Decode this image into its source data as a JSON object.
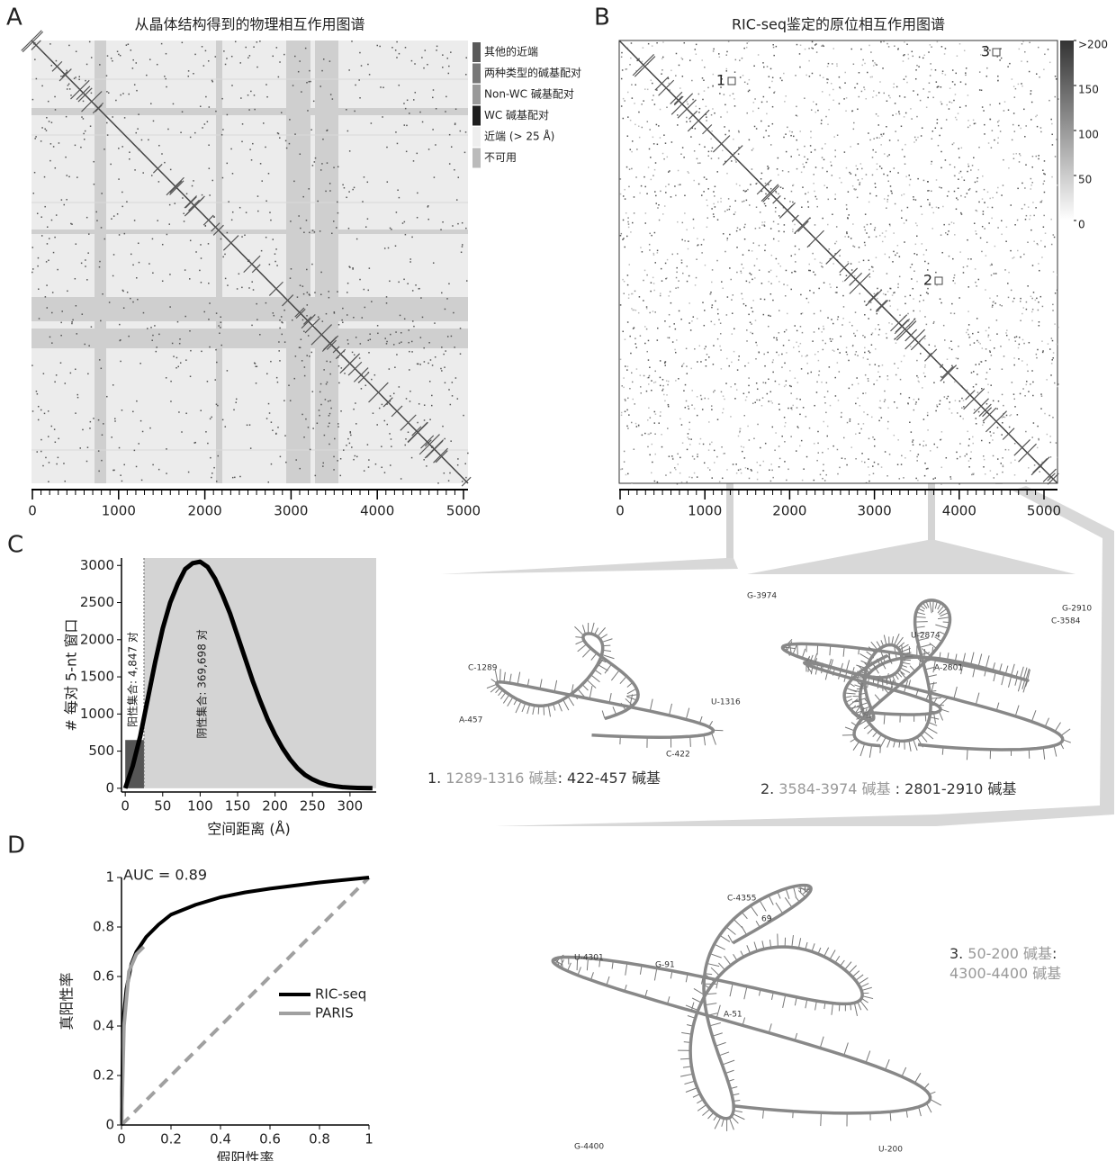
{
  "panels": {
    "A": {
      "label": "A",
      "title": "从晶体结构得到的物理相互作用图谱",
      "legend": [
        {
          "label": "其他的近端",
          "color": "#5a5a5a"
        },
        {
          "label": "两种类型的碱基配对",
          "color": "#777777"
        },
        {
          "label": "Non-WC 碱基配对",
          "color": "#999999"
        },
        {
          "label": "WC 碱基配对",
          "color": "#1e1e1e"
        },
        {
          "label": "近端 (> 25 Å)",
          "color": "#eeeeee"
        },
        {
          "label": "不可用",
          "color": "#bbbbbb"
        }
      ],
      "xlim": [
        0,
        5060
      ],
      "xticks": [
        0,
        1000,
        2000,
        3000,
        4000,
        5000
      ],
      "minor_tick_step": 100
    },
    "B": {
      "label": "B",
      "title": "RIC-seq鉴定的原位相互作用图谱",
      "xlim": [
        0,
        5060
      ],
      "xticks": [
        0,
        1000,
        2000,
        3000,
        4000,
        5000
      ],
      "minor_tick_step": 100,
      "colorbar": {
        "lim": [
          0,
          200
        ],
        "ticks": [
          {
            "value": 200,
            "label": ">200"
          },
          150,
          100,
          50,
          0
        ]
      },
      "markers": [
        "1",
        "2",
        "3"
      ]
    },
    "C": {
      "label": "C",
      "type": "line",
      "ylabel": "# 每对 5-nt 窗口",
      "xlabel": "空间距离 (Å)",
      "xlim": [
        -5,
        335
      ],
      "ylim": [
        -50,
        3100
      ],
      "xticks": [
        0,
        50,
        100,
        150,
        200,
        250,
        300
      ],
      "yticks": [
        0,
        500,
        1000,
        1500,
        2000,
        2500,
        3000
      ],
      "threshold": 25,
      "positive_height": 650,
      "positive_label": "阳性集合: 4,847 对",
      "negative_label": "阴性集合: 369,698 对",
      "color": "#000000",
      "x": [
        0,
        10,
        20,
        30,
        40,
        50,
        60,
        70,
        80,
        90,
        100,
        110,
        120,
        130,
        140,
        150,
        160,
        170,
        180,
        190,
        200,
        210,
        220,
        230,
        240,
        250,
        260,
        270,
        280,
        290,
        300,
        310,
        320,
        330
      ],
      "values": [
        0,
        300,
        700,
        1200,
        1700,
        2150,
        2500,
        2750,
        2950,
        3030,
        3050,
        2980,
        2820,
        2600,
        2350,
        2050,
        1750,
        1450,
        1180,
        930,
        720,
        540,
        390,
        270,
        180,
        120,
        75,
        45,
        28,
        15,
        9,
        5,
        3,
        2
      ]
    },
    "D": {
      "label": "D",
      "type": "line",
      "annotation": "AUC = 0.89",
      "ylabel": "真阳性率",
      "xlabel": "假阳性率",
      "xlim": [
        0,
        1
      ],
      "ylim": [
        0,
        1
      ],
      "xticks": [
        0,
        0.2,
        0.4,
        0.6,
        0.8,
        1
      ],
      "yticks": [
        0,
        0.2,
        0.4,
        0.6,
        0.8,
        1
      ],
      "series": [
        {
          "name": "RIC-seq",
          "color": "#000000",
          "x": [
            0,
            0.005,
            0.01,
            0.02,
            0.04,
            0.06,
            0.1,
            0.15,
            0.2,
            0.3,
            0.4,
            0.5,
            0.6,
            0.8,
            1
          ],
          "values": [
            0,
            0.3,
            0.45,
            0.55,
            0.65,
            0.7,
            0.76,
            0.81,
            0.85,
            0.89,
            0.92,
            0.94,
            0.955,
            0.98,
            1
          ]
        },
        {
          "name": "PARIS",
          "color": "#a0a0a0",
          "x": [
            0,
            0.01,
            0.03,
            0.06,
            0.09
          ],
          "values": [
            0,
            0.4,
            0.62,
            0.69,
            0.72
          ]
        }
      ]
    }
  },
  "structures": [
    {
      "caption": [
        [
          {
            "text": "1.",
            "tone": "dark"
          },
          {
            "text": "1289-1316 碱基",
            "tone": "gray"
          },
          {
            "text": ": 422-457 碱基",
            "tone": "dark"
          }
        ]
      ],
      "labels": [
        "C-1289",
        "U-1316",
        "A-457",
        "C-422"
      ]
    },
    {
      "caption": [
        [
          {
            "text": "2.",
            "tone": "dark"
          },
          {
            "text": "3584-3974 碱基",
            "tone": "gray"
          },
          {
            "text": " : 2801-2910 碱基",
            "tone": "dark"
          }
        ]
      ],
      "labels": [
        "G-3974",
        "G-2910",
        "C-3584",
        "U-2874",
        "A-2801"
      ]
    },
    {
      "caption": [
        [
          {
            "text": "3.",
            "tone": "dark"
          },
          {
            "text": "50-200 碱基",
            "tone": "gray"
          },
          {
            "text": ":",
            "tone": "dark"
          }
        ],
        [
          {
            "text": "4300-4400 碱基",
            "tone": "gray"
          }
        ]
      ],
      "labels": [
        "C-4355",
        "69",
        "U-4301",
        "G-91",
        "A-51",
        "G-4400",
        "U-200"
      ]
    }
  ]
}
